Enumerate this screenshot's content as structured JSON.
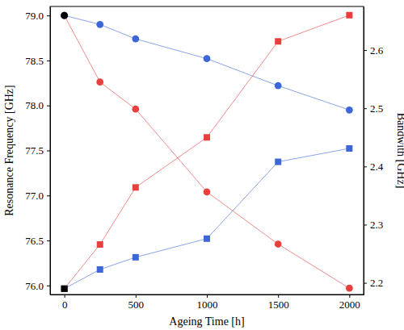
{
  "chart_data": {
    "type": "line",
    "x_label": "Ageing Time [h]",
    "y_label": "Resonance Frequency [GHz]",
    "y2_label": "Bandwith [GHz]",
    "xlim": [
      -100,
      2100
    ],
    "xticks": [
      0,
      500,
      1000,
      1500,
      2000
    ],
    "ylim": [
      75.9,
      79.1
    ],
    "yticks": [
      {
        "value": 76,
        "label": "76.0"
      },
      76.5,
      {
        "value": 77,
        "label": "77.0"
      },
      77.5,
      {
        "value": 78,
        "label": "78.0"
      },
      78.5,
      {
        "value": 79,
        "label": "79.0"
      }
    ],
    "y2lim": [
      2.18,
      2.675
    ],
    "y2ticks": [
      2.2,
      2.3,
      2.4,
      2.5,
      2.6
    ],
    "grid": false,
    "series": [
      {
        "color": "#e8403e",
        "marker": "circle",
        "line_style": "solid",
        "x": [
          0,
          250,
          500,
          1000,
          1500,
          2000
        ],
        "values": [
          79.0,
          78.26,
          77.96,
          77.04,
          76.46,
          75.97
        ]
      },
      {
        "color": "#3d67d6",
        "marker": "circle",
        "line_style": "solid",
        "x": [
          0,
          250,
          500,
          1000,
          1500,
          2000
        ],
        "values": [
          79.0,
          78.9,
          78.74,
          78.52,
          78.22,
          77.95
        ]
      },
      {
        "color": "#e8403e",
        "marker": "square",
        "line_style": "solid",
        "axis": "y2",
        "x": [
          0,
          250,
          500,
          1000,
          1500,
          2000
        ],
        "values": [
          2.19,
          2.266,
          2.364,
          2.45,
          2.615,
          2.66
        ]
      },
      {
        "color": "#3d67d6",
        "marker": "square",
        "line_style": "solid",
        "axis": "y2",
        "x": [
          0,
          250,
          500,
          1000,
          1500,
          2000
        ],
        "values": [
          2.19,
          2.223,
          2.244,
          2.276,
          2.408,
          2.431
        ]
      },
      {
        "color": "#000000",
        "marker": "circle",
        "line_style": "none",
        "x": [
          0
        ],
        "values": [
          79.0
        ]
      },
      {
        "color": "#000000",
        "marker": "square",
        "line_style": "none",
        "axis": "y2",
        "x": [
          0
        ],
        "values": [
          2.19
        ]
      }
    ]
  }
}
